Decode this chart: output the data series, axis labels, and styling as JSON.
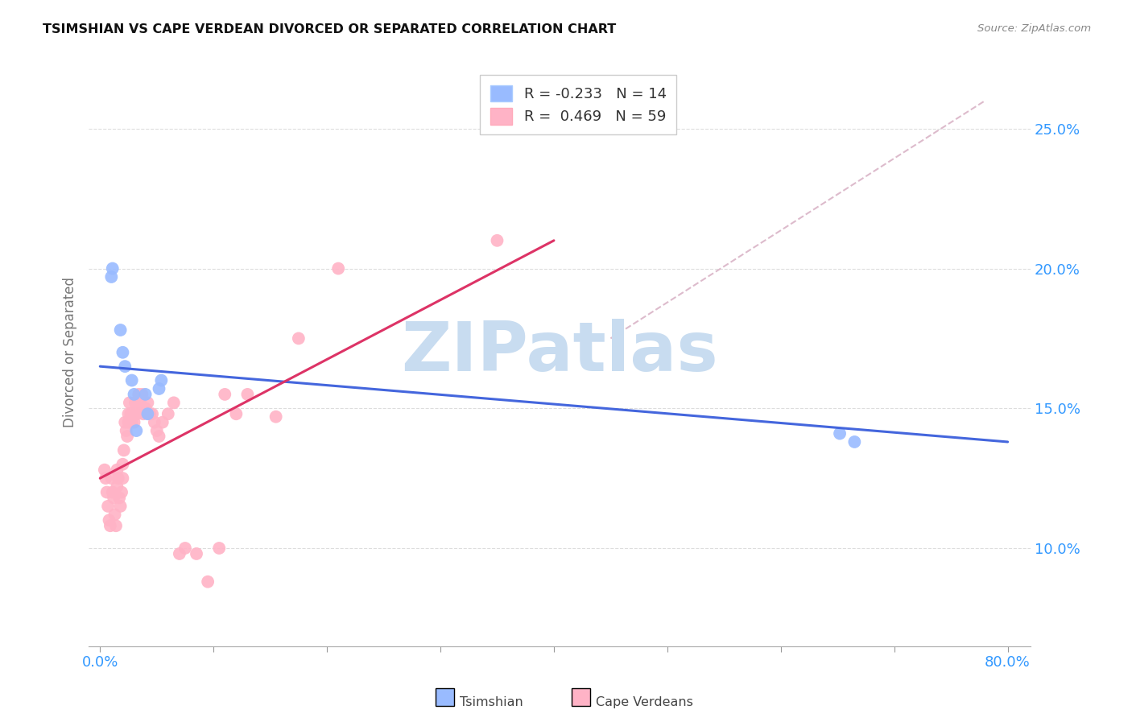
{
  "title": "TSIMSHIAN VS CAPE VERDEAN DIVORCED OR SEPARATED CORRELATION CHART",
  "source": "Source: ZipAtlas.com",
  "ylabel": "Divorced or Separated",
  "xlim": [
    -0.01,
    0.82
  ],
  "ylim": [
    0.065,
    0.275
  ],
  "xtick_positions": [
    0.0,
    0.1,
    0.2,
    0.3,
    0.4,
    0.5,
    0.6,
    0.7,
    0.8
  ],
  "ytick_positions": [
    0.1,
    0.15,
    0.2,
    0.25
  ],
  "ytick_labels": [
    "10.0%",
    "15.0%",
    "20.0%",
    "25.0%"
  ],
  "blue_color": "#99BBFF",
  "pink_color": "#FFB3C6",
  "blue_line_color": "#4466DD",
  "pink_line_color": "#DD3366",
  "diag_color": "#DDBBCC",
  "watermark_color": "#C8DCF0",
  "legend_label_blue": "R = -0.233   N = 14",
  "legend_label_pink": "R =  0.469   N = 59",
  "tsimshian_x": [
    0.01,
    0.011,
    0.018,
    0.02,
    0.022,
    0.028,
    0.03,
    0.032,
    0.04,
    0.042,
    0.052,
    0.054,
    0.652,
    0.665
  ],
  "tsimshian_y": [
    0.197,
    0.2,
    0.178,
    0.17,
    0.165,
    0.16,
    0.155,
    0.142,
    0.155,
    0.148,
    0.157,
    0.16,
    0.141,
    0.138
  ],
  "cape_verdean_x": [
    0.004,
    0.005,
    0.006,
    0.007,
    0.008,
    0.009,
    0.01,
    0.011,
    0.012,
    0.013,
    0.014,
    0.015,
    0.015,
    0.016,
    0.017,
    0.018,
    0.019,
    0.02,
    0.02,
    0.021,
    0.022,
    0.023,
    0.024,
    0.025,
    0.025,
    0.026,
    0.027,
    0.028,
    0.029,
    0.03,
    0.031,
    0.032,
    0.033,
    0.034,
    0.035,
    0.037,
    0.038,
    0.04,
    0.042,
    0.044,
    0.046,
    0.048,
    0.05,
    0.052,
    0.055,
    0.06,
    0.065,
    0.07,
    0.075,
    0.085,
    0.095,
    0.105,
    0.11,
    0.12,
    0.13,
    0.155,
    0.175,
    0.21,
    0.35
  ],
  "cape_verdean_y": [
    0.128,
    0.125,
    0.12,
    0.115,
    0.11,
    0.108,
    0.125,
    0.12,
    0.118,
    0.112,
    0.108,
    0.128,
    0.122,
    0.125,
    0.118,
    0.115,
    0.12,
    0.13,
    0.125,
    0.135,
    0.145,
    0.142,
    0.14,
    0.148,
    0.145,
    0.152,
    0.148,
    0.145,
    0.148,
    0.145,
    0.152,
    0.15,
    0.148,
    0.155,
    0.152,
    0.155,
    0.148,
    0.15,
    0.152,
    0.148,
    0.148,
    0.145,
    0.142,
    0.14,
    0.145,
    0.148,
    0.152,
    0.098,
    0.1,
    0.098,
    0.088,
    0.1,
    0.155,
    0.148,
    0.155,
    0.147,
    0.175,
    0.2,
    0.21
  ],
  "blue_trend_x": [
    0.0,
    0.8
  ],
  "blue_trend_y_start": 0.165,
  "blue_trend_y_end": 0.138,
  "pink_trend_x": [
    0.0,
    0.4
  ],
  "pink_trend_y_start": 0.125,
  "pink_trend_y_end": 0.21,
  "diag_line": [
    [
      0.45,
      0.78
    ],
    [
      0.175,
      0.26
    ]
  ]
}
